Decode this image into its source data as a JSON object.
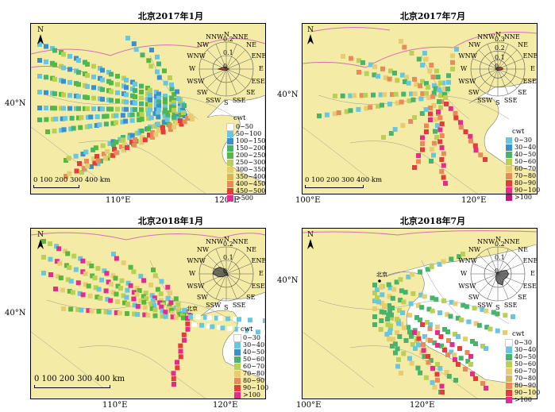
{
  "panels": [
    {
      "title": "北京2017年1月",
      "legend_title": "cwt",
      "legend": [
        [
          "0~50",
          "#ffffff"
        ],
        [
          "50~100",
          "#67c6e0"
        ],
        [
          "100~150",
          "#3a8fd0"
        ],
        [
          "150~200",
          "#47b36b"
        ],
        [
          "200~250",
          "#57b83e"
        ],
        [
          "250~300",
          "#b9d055"
        ],
        [
          "300~350",
          "#e8cc72"
        ],
        [
          "350~400",
          "#d9b553"
        ],
        [
          "400~450",
          "#e88a5a"
        ],
        [
          "450~500",
          "#e83a3a"
        ],
        [
          ">500",
          "#e62b8e"
        ]
      ],
      "lat_label": "40°N",
      "lon_labels": [
        "110°E",
        "120°E"
      ],
      "scale": "0 100 200 300 400 km",
      "rose": {
        "rings": [
          "0.2",
          "0.1",
          "0"
        ],
        "dirs": [
          "N",
          "NNE",
          "NE",
          "ENE",
          "E",
          "ESE",
          "SE",
          "SSE",
          "S",
          "SSW",
          "SW",
          "WSW",
          "W",
          "WNW",
          "NW",
          "NNW"
        ]
      }
    },
    {
      "title": "北京2017年7月",
      "legend_title": "cwt",
      "legend": [
        [
          "0~30",
          "#67c6e0"
        ],
        [
          "30~40",
          "#3a8fd0"
        ],
        [
          "40~50",
          "#47b36b"
        ],
        [
          "50~60",
          "#b9d055"
        ],
        [
          "60~70",
          "#e8cc72"
        ],
        [
          "70~80",
          "#e88a5a"
        ],
        [
          "80~90",
          "#e83a3a"
        ],
        [
          "90~100",
          "#e62b8e"
        ],
        [
          ">100",
          "#c0157a"
        ]
      ],
      "lat_label": "40°N",
      "lon_labels": [
        "100°E",
        "120°E"
      ],
      "scale": "0 100 200 300 400 km",
      "rose": {
        "rings": [
          "0.3",
          "0.2",
          "0.1",
          "0"
        ],
        "dirs": [
          "N",
          "NNE",
          "NE",
          "ENE",
          "E",
          "ESE",
          "SE",
          "SSE",
          "S",
          "SSW",
          "SW",
          "WSW",
          "W",
          "WNW",
          "NW",
          "NNW"
        ]
      }
    },
    {
      "title": "北京2018年1月",
      "legend_title": "cwt",
      "legend": [
        [
          "0~30",
          "#ffffff"
        ],
        [
          "30~40",
          "#67c6e0"
        ],
        [
          "40~50",
          "#3a8fd0"
        ],
        [
          "50~60",
          "#47b36b"
        ],
        [
          "60~70",
          "#b9d055"
        ],
        [
          "70~80",
          "#e8cc72"
        ],
        [
          "80~90",
          "#e88a5a"
        ],
        [
          "90~100",
          "#e83a3a"
        ],
        [
          ">100",
          "#e62b8e"
        ]
      ],
      "lat_label": "40°N",
      "lon_labels": [
        "110°E",
        "120°E"
      ],
      "scale": "0 100 200 300 400 km",
      "rose": {
        "rings": [
          "0.2",
          "0.1",
          "0"
        ],
        "dirs": [
          "N",
          "NNE",
          "NE",
          "ENE",
          "E",
          "ESE",
          "SE",
          "SSE",
          "S",
          "SSW",
          "SW",
          "WSW",
          "W",
          "WNW",
          "NW",
          "NNW"
        ]
      }
    },
    {
      "title": "北京2018年7月",
      "legend_title": "cwt",
      "legend": [
        [
          "0~30",
          "#ffffff"
        ],
        [
          "30~40",
          "#67c6e0"
        ],
        [
          "40~50",
          "#47b36b"
        ],
        [
          "50~60",
          "#b9d055"
        ],
        [
          "60~70",
          "#e8cc72"
        ],
        [
          "70~80",
          "#d9b553"
        ],
        [
          "80~90",
          "#e88a5a"
        ],
        [
          "90~100",
          "#e83a3a"
        ],
        [
          ">100",
          "#e62b8e"
        ]
      ],
      "lat_label": "40°N",
      "lon_labels": [
        "100°E",
        "120°E"
      ],
      "scale": "",
      "rose": {
        "rings": [
          "0.2",
          "0.1",
          "0"
        ],
        "dirs": [
          "N",
          "NNE",
          "NE",
          "ENE",
          "E",
          "ESE",
          "SE",
          "SSE",
          "S",
          "SSW",
          "SW",
          "WSW",
          "W",
          "WNW",
          "NW",
          "NNW"
        ]
      }
    }
  ],
  "north_symbol": "N",
  "city_label": "北京",
  "colors": {
    "land": "#f4eca6",
    "sea": "#ffffff",
    "border": "#d66fb8",
    "province": "#9a9a9a"
  }
}
